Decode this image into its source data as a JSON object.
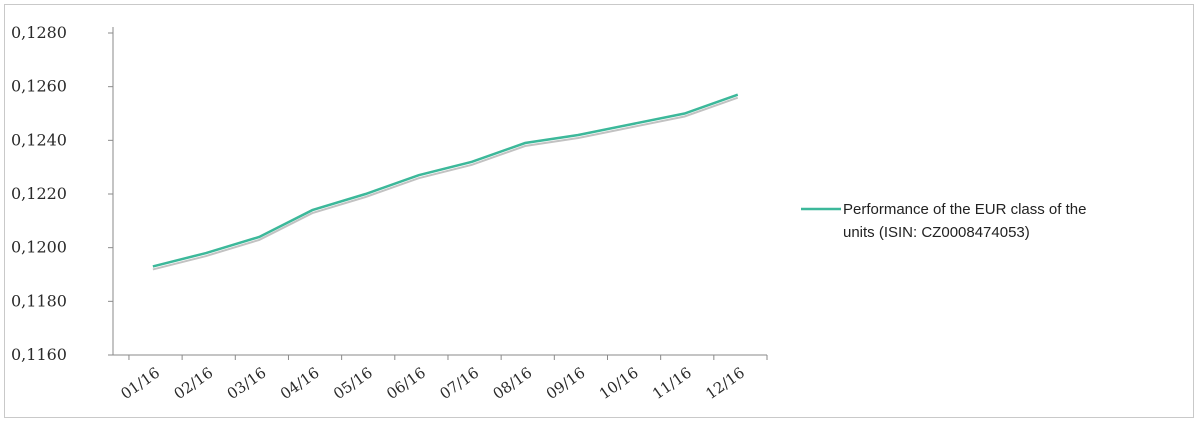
{
  "chart_data": {
    "type": "line",
    "title": "",
    "xlabel": "",
    "ylabel": "",
    "categories": [
      "01/16",
      "02/16",
      "03/16",
      "04/16",
      "05/16",
      "06/16",
      "07/16",
      "08/16",
      "09/16",
      "10/16",
      "11/16",
      "12/16"
    ],
    "series": [
      {
        "name": "Performance of the EUR class of the units (ISIN: CZ0008474053)",
        "values": [
          0.1193,
          0.1198,
          0.1204,
          0.1214,
          0.122,
          0.1227,
          0.1232,
          0.1239,
          0.1242,
          0.1246,
          0.125,
          0.1257
        ],
        "color": "#3cb89a"
      }
    ],
    "ylim": [
      0.116,
      0.128
    ],
    "yticks": [
      "0,1160",
      "0,1180",
      "0,1200",
      "0,1220",
      "0,1240",
      "0,1260",
      "0,1280"
    ],
    "grid": false,
    "legend_position": "right",
    "legend_lines": [
      "Performance of the EUR class of the",
      "units (ISIN: CZ0008474053)"
    ]
  }
}
